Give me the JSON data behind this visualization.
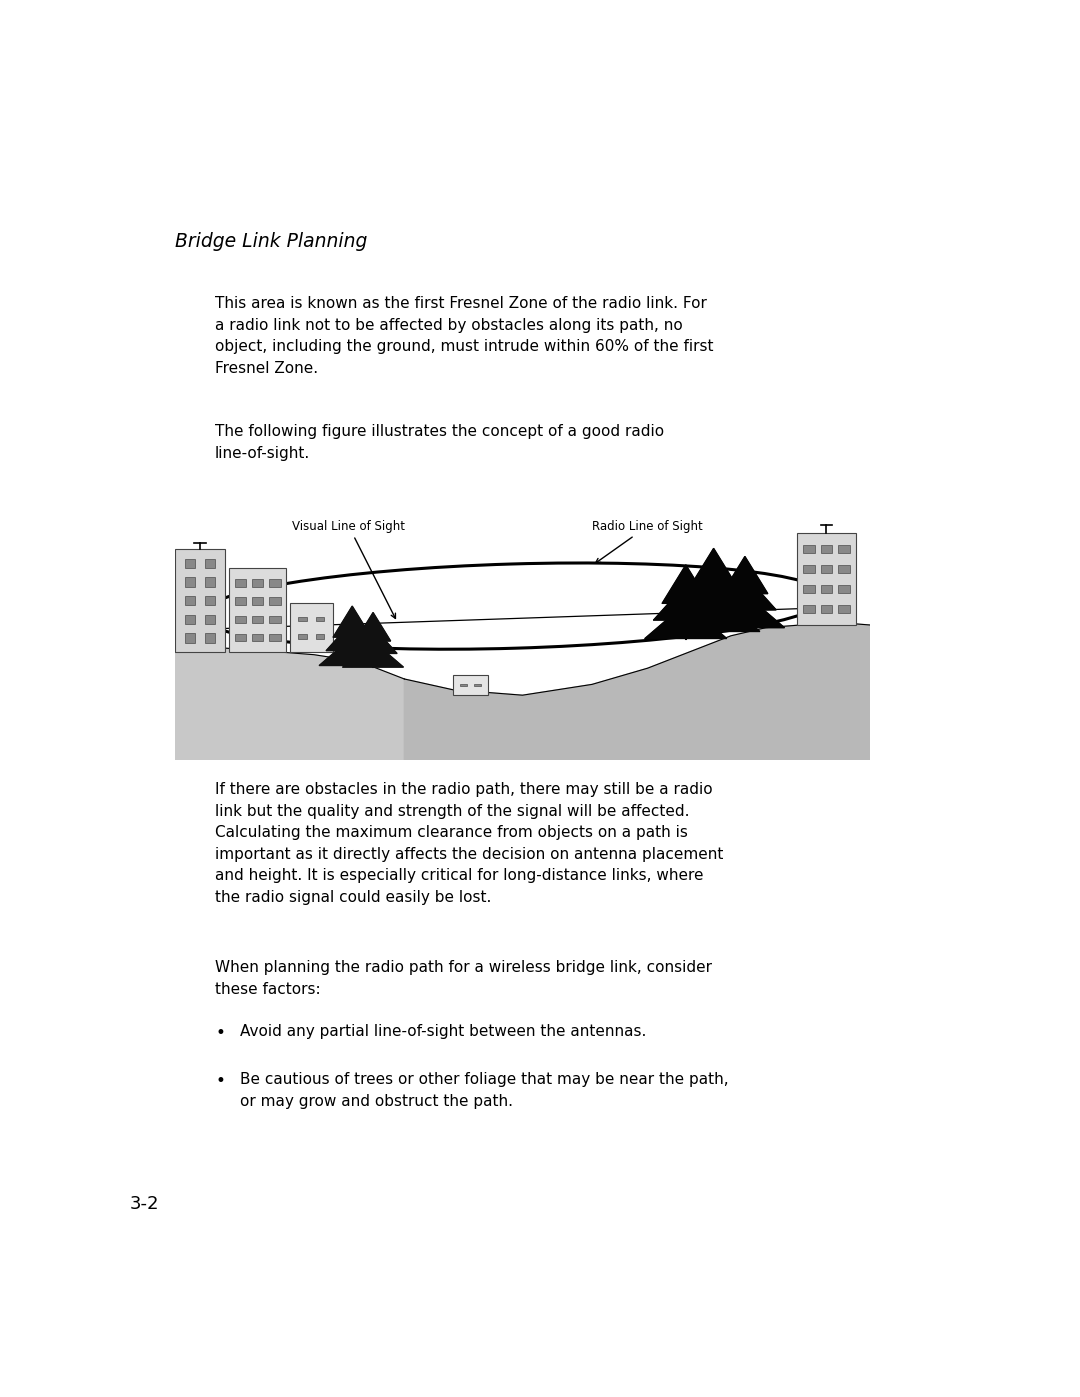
{
  "bg_color": "#ffffff",
  "title": "Bridge Link Planning",
  "title_fontsize": 13.5,
  "para1": "This area is known as the first Fresnel Zone of the radio link. For\na radio link not to be affected by obstacles along its path, no\nobject, including the ground, must intrude within 60% of the first\nFresnel Zone.",
  "para2": "The following figure illustrates the concept of a good radio\nline-of-sight.",
  "para3": "If there are obstacles in the radio path, there may still be a radio\nlink but the quality and strength of the signal will be affected.\nCalculating the maximum clearance from objects on a path is\nimportant as it directly affects the decision on antenna placement\nand height. It is especially critical for long-distance links, where\nthe radio signal could easily be lost.",
  "para4": "When planning the radio path for a wireless bridge link, consider\nthese factors:",
  "bullet1": "Avoid any partial line-of-sight between the antennas.",
  "bullet2_line1": "Be cautious of trees or other foliage that may be near the path,",
  "bullet2_line2": "or may grow and obstruct the path.",
  "page_num": "3-2",
  "text_color": "#000000",
  "body_fontsize": 11.0,
  "page_fontsize": 13,
  "label_visual": "Visual Line of Sight",
  "label_radio": "Radio Line of Sight"
}
